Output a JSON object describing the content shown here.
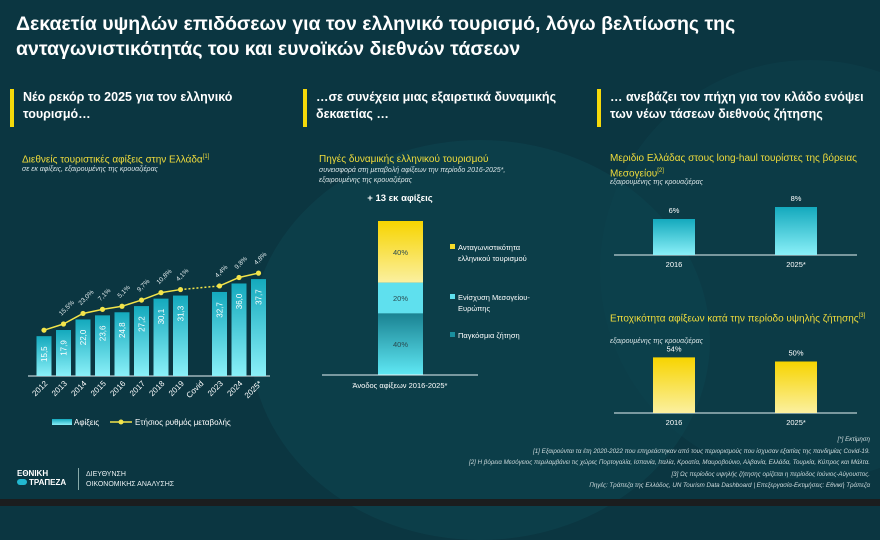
{
  "title": "Δεκαετία υψηλών επιδόσεων για τον ελληνικό τουρισμό, λόγω βελτίωσης της ανταγωνιστικότητάς του και ευνοϊκών διεθνών τάσεων",
  "sections": [
    "Νέο ρεκόρ το 2025 για τον ελληνικό τουρισμό…",
    "…σε συνέχεια μιας εξαιρετικά δυναμικής δεκαετίας …",
    "… ανεβάζει τον πήχη για τον κλάδο ενόψει των νέων τάσεων διεθνούς ζήτησης"
  ],
  "colors": {
    "background": "#0b3641",
    "accent": "#f5d90a",
    "bar": "#1fb5c8"
  },
  "chart_data": [
    {
      "type": "bar",
      "title": "Διεθνείς τουριστικές αφίξεις στην Ελλάδα",
      "title_ref": "[1]",
      "subtitle": "σε εκ αφίξεις, εξαιρουμένης της κρουαζιέρας",
      "categories": [
        "2012",
        "2013",
        "2014",
        "2015",
        "2016",
        "2017",
        "2018",
        "2019",
        "Covid",
        "2023",
        "2024",
        "2025*"
      ],
      "series": [
        {
          "name": "Αφίξεις",
          "type": "bar",
          "values": [
            15.5,
            17.9,
            22.0,
            23.6,
            24.8,
            27.2,
            30.1,
            31.3,
            null,
            32.7,
            36.0,
            37.7
          ],
          "labels": [
            "15,5",
            "17,9",
            "22,0",
            "23,6",
            "24,8",
            "27,2",
            "30,1",
            "31,3",
            "",
            "32,7",
            "36,0",
            "37,7"
          ]
        },
        {
          "name": "Ετήσιος ρυθμός μεταβολής",
          "type": "line",
          "labels": [
            "",
            "15,5%",
            "23,0%",
            "7,1%",
            "5,1%",
            "9,7%",
            "10,8%",
            "4,1%",
            "",
            "4,4%",
            "9,8%",
            "4,8%"
          ]
        }
      ],
      "legend": "bottom"
    },
    {
      "type": "bar",
      "stacked": true,
      "title": "Πηγές δυναμικής ελληνικού τουρισμού",
      "subtitle": [
        "συνεισφορά στη μεταβολή αφίξεων την περίοδο 2016-2025*,",
        "εξαιρουμένης της κρουαζιέρας"
      ],
      "total_label": "+ 13 εκ αφίξεις",
      "category": "Άνοδος αφίξεων 2016-2025*",
      "segments": [
        {
          "name": "Παγκόσμια ζήτηση",
          "value": 40,
          "label": "40%",
          "color": "#1a8f9e"
        },
        {
          "name": "Ενίσχυση Μεσογείου-Ευρώπης",
          "value": 20,
          "label": "20%",
          "color": "#5fe0ee"
        },
        {
          "name": "Ανταγωνιστικότητα ελληνικού τουρισμού",
          "value": 40,
          "label": "40%",
          "color": "#f7dc2a"
        }
      ],
      "legend": "right"
    },
    {
      "type": "bar",
      "title": "Μεριδιο Ελλάδας στους long-haul τουρίστες της βόρειας Μεσογείου",
      "title_ref": "[2]",
      "subtitle": "εξαιρουμένης της κρουαζιέρας",
      "categories": [
        "2016",
        "2025*"
      ],
      "values": [
        6,
        8
      ],
      "labels": [
        "6%",
        "8%"
      ],
      "color": "#1fb5c8"
    },
    {
      "type": "bar",
      "title": "Εποχικότητα αφίξεων κατά την περίοδο υψηλής ζήτησης",
      "title_ref": "[3]",
      "subtitle": "εξαιρουμένης της κρουαζιέρας",
      "categories": [
        "2016",
        "2025*"
      ],
      "values": [
        54,
        50
      ],
      "labels": [
        "54%",
        "50%"
      ],
      "color": "#f5d90a"
    }
  ],
  "footnotes": [
    "[*] Εκτίμηση",
    "[1] Εξαιρούνται τα έτη 2020-2022 που επηρεάστηκαν από τους περιορισμούς που ίσχυσαν εξαιτίας της πανδημίας Covid-19.",
    "[2] Η βόρεια Μεσόγειος περιλαμβάνει τις χώρες Πορτογαλία, Ισπανία, Ιταλία, Κροατία, Μαυροβούνιο, Αλβανία, Ελλάδα, Τουρκία, Κύπρος και Μάλτα.",
    "[3] Ως περίοδος υψηλής ζήτησης ορίζεται η περίοδος Ιούνιος-Αύγουστος.",
    "Πηγές: Τράπεζα της Ελλάδος, UN Tourism Data Dashboard | Επεξεργασία-Εκτιμήσεις: Εθνική Τράπεζα"
  ],
  "logo": {
    "line1": "ΕΘΝΙΚΗ",
    "line2": "ΤΡΑΠΕΖΑ"
  },
  "department": [
    "ΔΙΕΥΘΥΝΣΗ",
    "ΟΙΚΟΝΟΜΙΚΗΣ ΑΝΑΛΥΣΗΣ"
  ]
}
